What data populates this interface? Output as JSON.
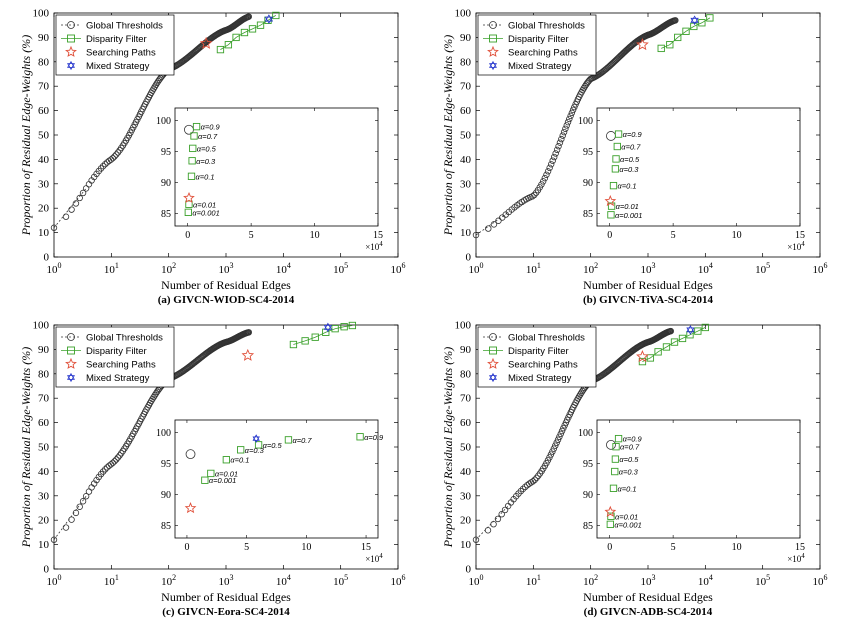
{
  "colors": {
    "global": "#333333",
    "disparity": "#3aa02a",
    "searching": "#e0503a",
    "mixed": "#2233cc"
  },
  "chart_data": [
    {
      "type": "scatter",
      "caption": "(a) GIVCN-WIOD-SC4-2014",
      "xlabel": "Number of Residual Edges",
      "ylabel": "Proportion of Residual Edge-Weights (%)",
      "xscale": "log",
      "xlim": [
        1,
        1000000
      ],
      "ylim": [
        0,
        100
      ],
      "xticks": [
        "10^0",
        "10^1",
        "10^2",
        "10^3",
        "10^4",
        "10^5",
        "10^6"
      ],
      "yticks": [
        "0",
        "10",
        "20",
        "30",
        "40",
        "50",
        "60",
        "70",
        "80",
        "90",
        "100"
      ],
      "legend": [
        "Global Thresholds",
        "Disparity Filter",
        "Searching Paths",
        "Mixed Strategy"
      ],
      "legend_position": "top-left",
      "global_curve": {
        "x": [
          1,
          10,
          100,
          1000,
          2500
        ],
        "y": [
          12,
          40,
          77,
          93,
          98.5
        ]
      },
      "disparity_filter": {
        "x": [
          800,
          1100,
          1500,
          2100,
          2900,
          4000,
          5400,
          7400
        ],
        "y": [
          85,
          87,
          90,
          92,
          93.5,
          95,
          97,
          99
        ]
      },
      "searching_paths": {
        "x": [
          450
        ],
        "y": [
          87.5
        ]
      },
      "mixed_strategy": {
        "x": [
          5600
        ],
        "y": [
          97.5
        ]
      },
      "inset": {
        "xlim": [
          -1,
          15
        ],
        "ylim": [
          83,
          102
        ],
        "xticks": [
          "0",
          "5",
          "10",
          "15"
        ],
        "yticks": [
          "85",
          "90",
          "95",
          "100"
        ],
        "xmultiplier": "×10^4",
        "global": {
          "x": [
            0.1
          ],
          "y": [
            98.5
          ]
        },
        "disparity": [
          {
            "x": 0.7,
            "y": 99.0,
            "label": "α=0.9"
          },
          {
            "x": 0.5,
            "y": 97.5,
            "label": "α=0.7"
          },
          {
            "x": 0.4,
            "y": 95.5,
            "label": "α=0.5"
          },
          {
            "x": 0.35,
            "y": 93.5,
            "label": "α=0.3"
          },
          {
            "x": 0.3,
            "y": 91.0,
            "label": "α=0.1"
          },
          {
            "x": 0.1,
            "y": 86.5,
            "label": "α=0.01"
          },
          {
            "x": 0.05,
            "y": 85.2,
            "label": "α=0.001"
          }
        ],
        "searching": {
          "x": [
            0.1
          ],
          "y": [
            87.5
          ]
        }
      }
    },
    {
      "type": "scatter",
      "caption": "(b) GIVCN-TiVA-SC4-2014",
      "xlabel": "Number of Residual Edges",
      "ylabel": "Proportion of Residual Edge-Weights (%)",
      "xscale": "log",
      "xlim": [
        1,
        1000000
      ],
      "ylim": [
        0,
        100
      ],
      "xticks": [
        "10^0",
        "10^1",
        "10^2",
        "10^3",
        "10^4",
        "10^5",
        "10^6"
      ],
      "yticks": [
        "0",
        "10",
        "20",
        "30",
        "40",
        "50",
        "60",
        "70",
        "80",
        "90",
        "100"
      ],
      "legend": [
        "Global Thresholds",
        "Disparity Filter",
        "Searching Paths",
        "Mixed Strategy"
      ],
      "legend_position": "top-left",
      "global_curve": {
        "x": [
          1,
          10,
          100,
          1000,
          3000
        ],
        "y": [
          9,
          25,
          73,
          91,
          97
        ]
      },
      "disparity_filter": {
        "x": [
          1700,
          2400,
          3300,
          4600,
          6300,
          8700,
          12000
        ],
        "y": [
          85.5,
          87,
          90,
          92.5,
          94.5,
          96,
          98
        ]
      },
      "searching_paths": {
        "x": [
          800
        ],
        "y": [
          87
        ]
      },
      "mixed_strategy": {
        "x": [
          6500
        ],
        "y": [
          97
        ]
      },
      "inset": {
        "xlim": [
          -1,
          15
        ],
        "ylim": [
          83,
          102
        ],
        "xticks": [
          "0",
          "5",
          "10",
          "15"
        ],
        "yticks": [
          "85",
          "90",
          "95",
          "100"
        ],
        "xmultiplier": "×10^4",
        "global": {
          "x": [
            0.1
          ],
          "y": [
            97.5
          ]
        },
        "disparity": [
          {
            "x": 0.7,
            "y": 97.8,
            "label": "α=0.9"
          },
          {
            "x": 0.6,
            "y": 95.8,
            "label": "α=0.7"
          },
          {
            "x": 0.5,
            "y": 93.8,
            "label": "α=0.5"
          },
          {
            "x": 0.45,
            "y": 92.2,
            "label": "α=0.3"
          },
          {
            "x": 0.3,
            "y": 89.5,
            "label": "α=0.1"
          },
          {
            "x": 0.15,
            "y": 86.2,
            "label": "α=0.01"
          },
          {
            "x": 0.1,
            "y": 84.8,
            "label": "α=0.001"
          }
        ],
        "searching": {
          "x": [
            0.05
          ],
          "y": [
            87
          ]
        }
      }
    },
    {
      "type": "scatter",
      "caption": "(c) GIVCN-Eora-SC4-2014",
      "xlabel": "Number of Residual Edges",
      "ylabel": "Proportion of Residual Edge-Weights (%)",
      "xscale": "log",
      "xlim": [
        1,
        1000000
      ],
      "ylim": [
        0,
        100
      ],
      "xticks": [
        "10^0",
        "10^1",
        "10^2",
        "10^3",
        "10^4",
        "10^5",
        "10^6"
      ],
      "yticks": [
        "0",
        "10",
        "20",
        "30",
        "40",
        "50",
        "60",
        "70",
        "80",
        "90",
        "100"
      ],
      "legend": [
        "Global Thresholds",
        "Disparity Filter",
        "Searching Paths",
        "Mixed Strategy"
      ],
      "legend_position": "top-left",
      "global_curve": {
        "x": [
          1,
          10,
          100,
          1000,
          2500
        ],
        "y": [
          12,
          43,
          78,
          93,
          97
        ]
      },
      "disparity_filter": {
        "x": [
          15000,
          24000,
          36000,
          55000,
          80000,
          115000,
          160000
        ],
        "y": [
          92,
          93.5,
          95,
          97,
          98.5,
          99.3,
          99.8
        ]
      },
      "searching_paths": {
        "x": [
          2400
        ],
        "y": [
          87.5
        ]
      },
      "mixed_strategy": {
        "x": [
          60000
        ],
        "y": [
          99
        ]
      },
      "inset": {
        "xlim": [
          -1,
          16
        ],
        "ylim": [
          83,
          102
        ],
        "xticks": [
          "0",
          "5",
          "10",
          "15"
        ],
        "yticks": [
          "85",
          "90",
          "95",
          "100"
        ],
        "xmultiplier": "×10^4",
        "global": {
          "x": [
            0.3
          ],
          "y": [
            96.5
          ]
        },
        "disparity": [
          {
            "x": 14.5,
            "y": 99.3,
            "label": "α=0.9"
          },
          {
            "x": 8.5,
            "y": 98.8,
            "label": "α=0.7"
          },
          {
            "x": 6.0,
            "y": 98.0,
            "label": "α=0.5"
          },
          {
            "x": 4.5,
            "y": 97.2,
            "label": "α=0.3"
          },
          {
            "x": 3.3,
            "y": 95.6,
            "label": "α=0.1"
          },
          {
            "x": 2.0,
            "y": 93.4,
            "label": "α=0.01"
          },
          {
            "x": 1.5,
            "y": 92.3,
            "label": "α=0.001"
          }
        ],
        "searching": {
          "x": [
            0.3
          ],
          "y": [
            87.8
          ]
        },
        "mixed": {
          "x": [
            5.8
          ],
          "y": [
            99
          ]
        }
      }
    },
    {
      "type": "scatter",
      "caption": "(d) GIVCN-ADB-SC4-2014",
      "xlabel": "Number of Residual Edges",
      "ylabel": "Proportion of Residual Edge-Weights (%)",
      "xscale": "log",
      "xlim": [
        1,
        1000000
      ],
      "ylim": [
        0,
        100
      ],
      "xticks": [
        "10^0",
        "10^1",
        "10^2",
        "10^3",
        "10^4",
        "10^5",
        "10^6"
      ],
      "yticks": [
        "0",
        "10",
        "20",
        "30",
        "40",
        "50",
        "60",
        "70",
        "80",
        "90",
        "100"
      ],
      "legend": [
        "Global Thresholds",
        "Disparity Filter",
        "Searching Paths",
        "Mixed Strategy"
      ],
      "legend_position": "top-left",
      "global_curve": {
        "x": [
          1,
          10,
          100,
          1000,
          2500
        ],
        "y": [
          12,
          36,
          77,
          93,
          97.5
        ]
      },
      "disparity_filter": {
        "x": [
          800,
          1100,
          1500,
          2100,
          2900,
          4000,
          5400,
          7400,
          10000
        ],
        "y": [
          85,
          86.5,
          89,
          91,
          93,
          94.5,
          96,
          97.5,
          99
        ]
      },
      "searching_paths": {
        "x": [
          800
        ],
        "y": [
          87
        ]
      },
      "mixed_strategy": {
        "x": [
          5500
        ],
        "y": [
          98
        ]
      },
      "inset": {
        "xlim": [
          -1,
          15
        ],
        "ylim": [
          83,
          102
        ],
        "xticks": [
          "0",
          "5",
          "10",
          "15"
        ],
        "yticks": [
          "85",
          "90",
          "95",
          "100"
        ],
        "xmultiplier": "×10^4",
        "global": {
          "x": [
            0.1
          ],
          "y": [
            98
          ]
        },
        "disparity": [
          {
            "x": 0.7,
            "y": 99.0,
            "label": "α=0.9"
          },
          {
            "x": 0.5,
            "y": 97.7,
            "label": "α=0.7"
          },
          {
            "x": 0.45,
            "y": 95.7,
            "label": "α=0.5"
          },
          {
            "x": 0.4,
            "y": 93.7,
            "label": "α=0.3"
          },
          {
            "x": 0.3,
            "y": 91.0,
            "label": "α=0.1"
          },
          {
            "x": 0.1,
            "y": 86.5,
            "label": "α=0.01"
          },
          {
            "x": 0.05,
            "y": 85.2,
            "label": "α=0.001"
          }
        ],
        "searching": {
          "x": [
            0.05
          ],
          "y": [
            87.2
          ]
        }
      }
    }
  ]
}
